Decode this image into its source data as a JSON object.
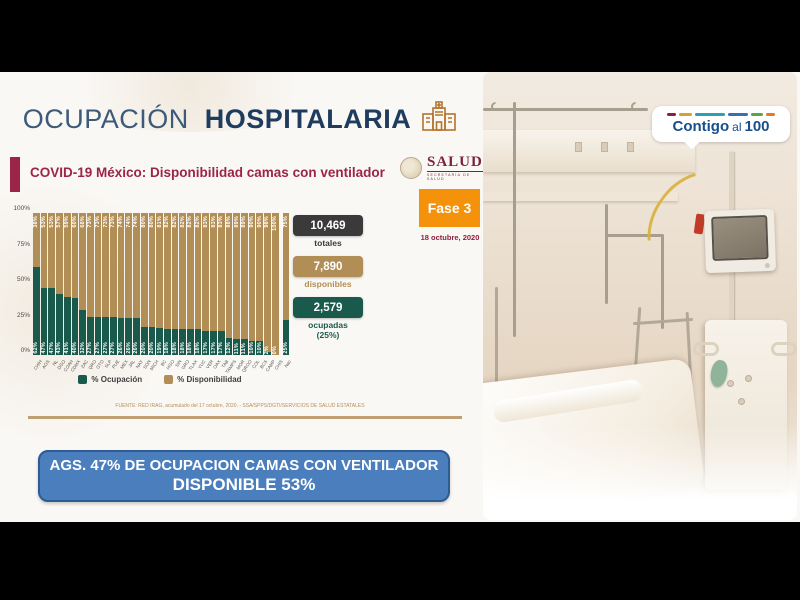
{
  "slide": {
    "title_light": "OCUPACIÓN",
    "title_bold": "HOSPITALARIA",
    "subtitle": "COVID-19 México: Disponibilidad camas con ventilador",
    "source": "FUENTE: RED IRAG, acumulado del 17 octubre, 2020. - SSA/SPPS/DGTI/SERVICIOS DE SALUD ESTATALES"
  },
  "salud_logo": {
    "title": "SALUD",
    "subtitle": "SECRETARÍA DE SALUD"
  },
  "phase": {
    "label": "Fase 3",
    "date": "18 octubre, 2020"
  },
  "stats": {
    "totales": {
      "value": "10,469",
      "label": "totales"
    },
    "disponibles": {
      "value": "7,890",
      "label": "disponibles"
    },
    "ocupadas": {
      "value": "2,579",
      "label": "ocupadas",
      "sublabel": "(25%)"
    }
  },
  "legend": {
    "ocupacion": "% Ocupación",
    "disponibilidad": "% Disponibilidad"
  },
  "banner": {
    "line1": "AGS. 47% DE OCUPACION CAMAS CON VENTILADOR",
    "line2": "DISPONIBLE 53%"
  },
  "contigo_logo": {
    "part1": "Contigo",
    "part2": "al",
    "part3": "100"
  },
  "colors": {
    "ocupacion_green": "#1a5a4d",
    "disponibilidad_tan": "#b28e57",
    "totales_black": "#3a3a3a",
    "accent_red": "#9d2449",
    "phase_orange": "#f5920b",
    "banner_blue": "#4a7ebc",
    "title_navy": "#1e3c5e"
  },
  "chart_data": {
    "type": "bar",
    "stacked": true,
    "title": "COVID-19 México: Disponibilidad camas con ventilador",
    "ylabel": "%",
    "ylim": [
      0,
      100
    ],
    "y_ticks": [
      "100%",
      "75%",
      "50%",
      "25%",
      "0%"
    ],
    "legend_position": "bottom",
    "categories": [
      "CHIH",
      "AGS",
      "NL",
      "DGO",
      "COAH",
      "CDMX",
      "ZAC",
      "QRO",
      "GTO",
      "SLP",
      "PUE",
      "MEX",
      "JAL",
      "NAY",
      "SON",
      "MICH",
      "BC",
      "HGO",
      "SIN",
      "GRO",
      "TLAX",
      "YUC",
      "VER",
      "OAX",
      "TAB",
      "TAMPS",
      "MOR",
      "QROO",
      "COL",
      "BCS",
      "CAMP",
      "CHIS",
      "Nac"
    ],
    "series": [
      {
        "name": "% Ocupación",
        "color": "#1a5a4d",
        "values": [
          62,
          47,
          47,
          43,
          41,
          40,
          32,
          27,
          27,
          27,
          27,
          26,
          26,
          26,
          20,
          20,
          19,
          18,
          18,
          18,
          18,
          18,
          17,
          17,
          17,
          12,
          11,
          11,
          10,
          10,
          2,
          0,
          25
        ]
      },
      {
        "name": "% Disponibilidad",
        "color": "#b28e57",
        "values": [
          38,
          53,
          53,
          57,
          59,
          60,
          68,
          73,
          73,
          73,
          73,
          74,
          74,
          74,
          80,
          80,
          81,
          82,
          82,
          82,
          82,
          82,
          83,
          83,
          83,
          88,
          89,
          89,
          90,
          90,
          98,
          100,
          75
        ]
      }
    ]
  }
}
